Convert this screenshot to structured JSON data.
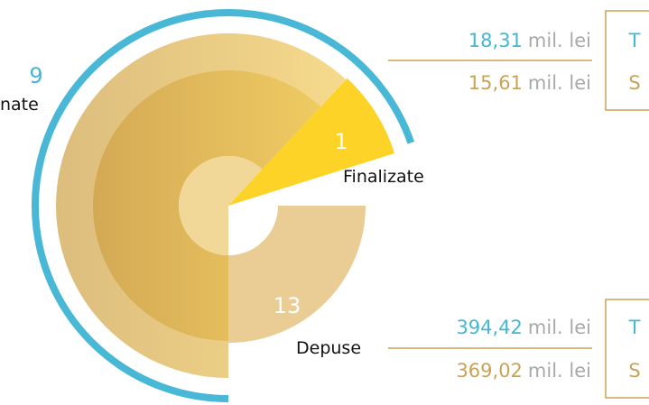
{
  "segments": [
    {
      "value": "9",
      "label": "nate"
    },
    {
      "value": "1",
      "label": "Finalizate"
    },
    {
      "value": "13",
      "label": "Depuse"
    }
  ],
  "panels": [
    {
      "rows": [
        {
          "amount": "18,31",
          "unit": "mil. lei",
          "key": "T"
        },
        {
          "amount": "15,61",
          "unit": "mil. lei",
          "key": "S"
        }
      ]
    },
    {
      "rows": [
        {
          "amount": "394,42",
          "unit": "mil. lei",
          "key": "T"
        },
        {
          "amount": "369,02",
          "unit": "mil. lei",
          "key": "S"
        }
      ]
    }
  ]
}
